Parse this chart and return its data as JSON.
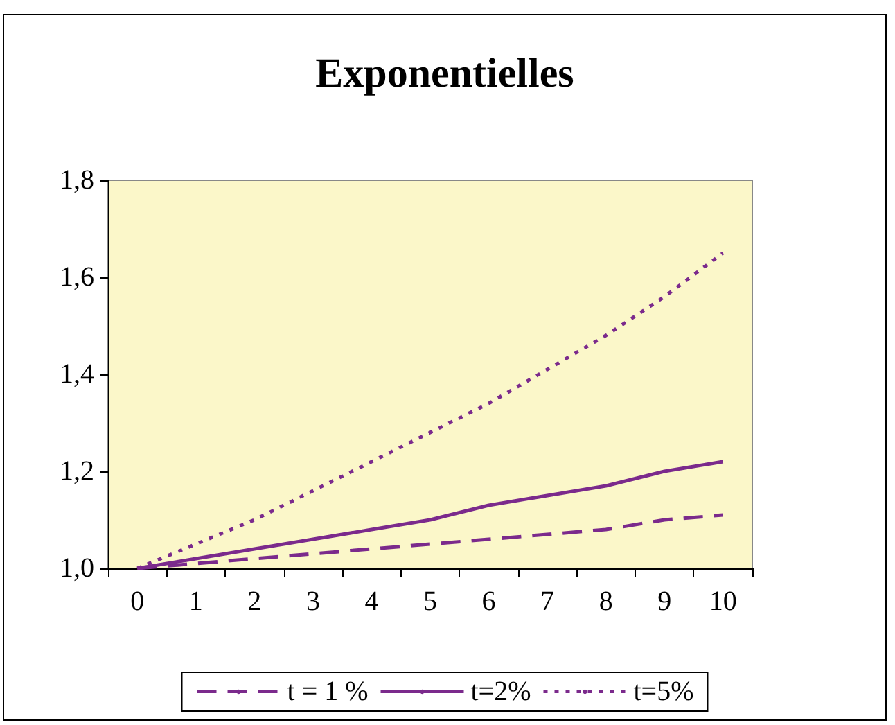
{
  "chart_data": {
    "type": "line",
    "title": "Exponentielles",
    "categories": [
      "0",
      "1",
      "2",
      "3",
      "4",
      "5",
      "6",
      "7",
      "8",
      "9",
      "10"
    ],
    "series": [
      {
        "name": "t = 1 %",
        "color": "#7b2a8c",
        "line_style": "dashed",
        "values": [
          1.0,
          1.01,
          1.02,
          1.03,
          1.04,
          1.05,
          1.06,
          1.07,
          1.08,
          1.1,
          1.11
        ]
      },
      {
        "name": "t=2%",
        "color": "#7b2a8c",
        "line_style": "solid",
        "values": [
          1.0,
          1.02,
          1.04,
          1.06,
          1.08,
          1.1,
          1.13,
          1.15,
          1.17,
          1.2,
          1.22
        ]
      },
      {
        "name": "t=5%",
        "color": "#7b2a8c",
        "line_style": "dotted",
        "values": [
          1.0,
          1.05,
          1.1,
          1.16,
          1.22,
          1.28,
          1.34,
          1.41,
          1.48,
          1.56,
          1.65
        ]
      }
    ],
    "ylim": [
      1.0,
      1.8
    ],
    "yticks": [
      {
        "value": 1.0,
        "label": "1,0"
      },
      {
        "value": 1.2,
        "label": "1,2"
      },
      {
        "value": 1.4,
        "label": "1,4"
      },
      {
        "value": 1.6,
        "label": "1,6"
      },
      {
        "value": 1.8,
        "label": "1,8"
      }
    ],
    "grid": false,
    "legend": "bottom",
    "marker": "none"
  }
}
